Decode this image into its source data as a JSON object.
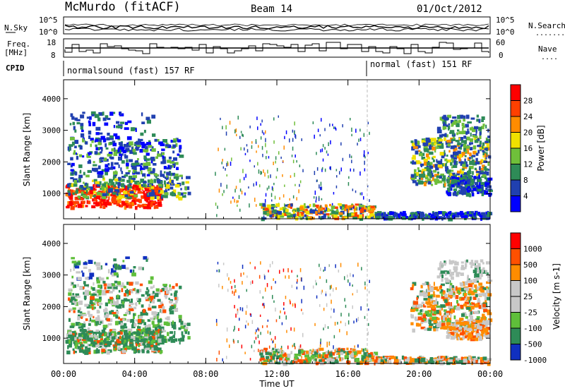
{
  "header": {
    "station": "McMurdo (fitACF)",
    "beam": "Beam 14",
    "date": "01/Oct/2012"
  },
  "status_panel": {
    "left_labels": {
      "nsky": "N.Sky",
      "freq_line1": "Freq.",
      "freq_line2": "[MHz]",
      "cpid": "CPID"
    },
    "right_labels": {
      "nsearch": "N.Search",
      "nsearch_dots": "........",
      "nave": "Nave",
      "nave_dots": "...."
    },
    "noise_ticks": [
      "10^5",
      "10^0"
    ],
    "freq_ticks": [
      "18",
      "8"
    ],
    "nave_ticks": [
      "60",
      "0"
    ],
    "cpid_modes": [
      {
        "label": "normalsound (fast) 157 RF",
        "start_hour": 0
      },
      {
        "label": "normal (fast) 151 RF",
        "start_hour": 17.3
      }
    ]
  },
  "chart_data": [
    {
      "type": "heatmap",
      "name": "power",
      "xlabel": "",
      "ylabel": "Slant Range [km]",
      "xlim": [
        0,
        24
      ],
      "ylim": [
        200,
        4600
      ],
      "x_ticks": [
        0,
        4,
        8,
        12,
        16,
        20,
        24
      ],
      "y_ticks": [
        1000,
        2000,
        3000,
        4000
      ],
      "colorbar": {
        "label": "Power [dB]",
        "ticks": [
          "4",
          "8",
          "12",
          "16",
          "20",
          "24",
          "28"
        ],
        "colors": [
          "#0000ff",
          "#2040b0",
          "#2e8b57",
          "#6fbf3a",
          "#f0e000",
          "#ff8c00",
          "#ff4000",
          "#ff0000"
        ]
      }
    },
    {
      "type": "heatmap",
      "name": "velocity",
      "xlabel": "Time UT",
      "ylabel": "Slant Range [km]",
      "xlim": [
        0,
        24
      ],
      "ylim": [
        200,
        4600
      ],
      "x_ticks": [
        0,
        4,
        8,
        12,
        16,
        20,
        24
      ],
      "x_tick_labels": [
        "00:00",
        "04:00",
        "08:00",
        "12:00",
        "16:00",
        "20:00",
        "00:00"
      ],
      "y_ticks": [
        1000,
        2000,
        3000,
        4000
      ],
      "colorbar": {
        "label": "Velocity [m s-1]",
        "ticks": [
          "1000",
          "500",
          "100",
          "25",
          "-25",
          "-100",
          "-500",
          "-1000"
        ],
        "colors": [
          "#1030c0",
          "#2e8b57",
          "#5fbf3a",
          "#c8c8c8",
          "#c8c8c8",
          "#ff8c00",
          "#ff5000",
          "#ff0000"
        ]
      }
    }
  ]
}
